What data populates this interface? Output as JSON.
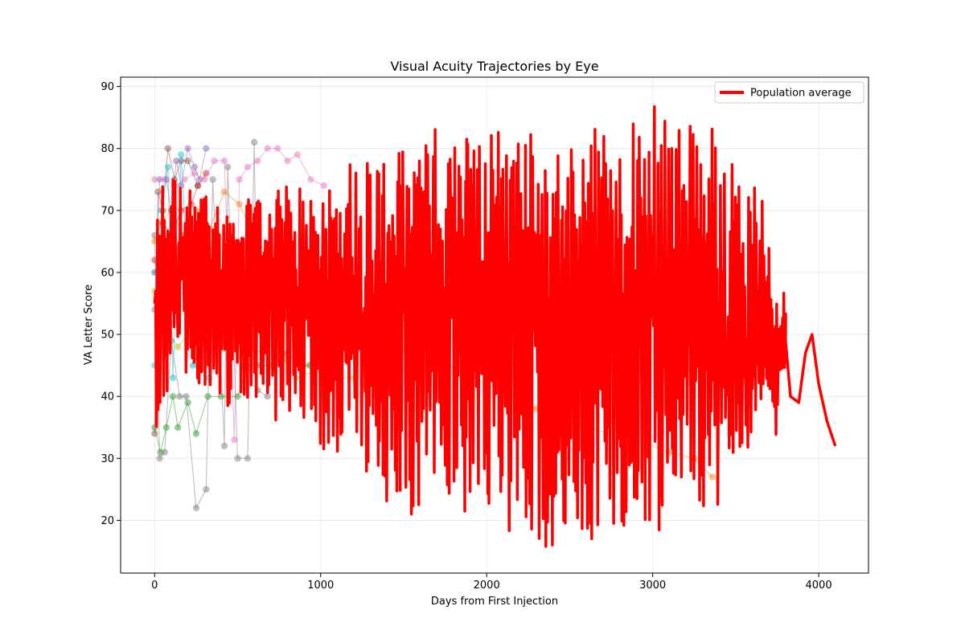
{
  "chart_data": {
    "type": "line",
    "title": "Visual Acuity Trajectories by Eye",
    "xlabel": "Days from First Injection",
    "ylabel": "VA Letter Score",
    "xlim": [
      -205,
      4300
    ],
    "ylim": [
      11.5,
      91.5
    ],
    "xticks": [
      0,
      1000,
      2000,
      3000,
      4000
    ],
    "yticks": [
      20,
      30,
      40,
      50,
      60,
      70,
      80,
      90
    ],
    "xtick_labels": [
      "0",
      "1000",
      "2000",
      "3000",
      "4000"
    ],
    "ytick_labels": [
      "20",
      "30",
      "40",
      "50",
      "60",
      "70",
      "80",
      "90"
    ],
    "grid": true,
    "legend": {
      "position": "upper right",
      "entries": [
        "Population average"
      ]
    },
    "colors": {
      "average": "#ff0000",
      "eyes": [
        "#1f77b4",
        "#ff7f0e",
        "#2ca02c",
        "#d62728",
        "#9467bd",
        "#8c564b",
        "#e377c2",
        "#7f7f7f",
        "#bcbd22",
        "#17becf"
      ]
    },
    "eye_series": [
      {
        "x": [
          0,
          30,
          60,
          90,
          120,
          180,
          240,
          300,
          360
        ],
        "y": [
          60,
          62,
          65,
          63,
          61,
          64,
          66,
          62,
          60
        ]
      },
      {
        "x": [
          0,
          40,
          100,
          170,
          250,
          330,
          420,
          510,
          600,
          700,
          900,
          1100,
          1400,
          1700,
          2000,
          2300,
          2600,
          2900,
          3100,
          3250,
          3360
        ],
        "y": [
          65,
          68,
          70,
          66,
          70,
          67,
          73,
          71,
          66,
          62,
          56,
          52,
          48,
          46,
          42,
          38,
          35,
          33,
          31,
          30,
          27
        ]
      },
      {
        "x": [
          0,
          35,
          70,
          110,
          140,
          200,
          250,
          320,
          400,
          500,
          560,
          620,
          700,
          800,
          880,
          930,
          1000
        ],
        "y": [
          35,
          31,
          35,
          40,
          35,
          39,
          34,
          40,
          40,
          40,
          45,
          45,
          45,
          47,
          45,
          45,
          46
        ]
      },
      {
        "x": [
          0,
          20,
          50,
          100,
          160,
          220,
          260,
          310
        ],
        "y": [
          62,
          60,
          68,
          66,
          70,
          71,
          74,
          76
        ]
      },
      {
        "x": [
          0,
          30,
          70,
          100,
          130,
          160,
          200,
          240,
          270,
          310
        ],
        "y": [
          54,
          75,
          75,
          70,
          78,
          74,
          80,
          77,
          75,
          80
        ]
      },
      {
        "x": [
          0,
          20,
          50,
          80,
          120,
          160,
          200,
          260
        ],
        "y": [
          34,
          73,
          70,
          80,
          75,
          78,
          78,
          74
        ]
      },
      {
        "x": [
          0,
          60,
          120,
          180,
          240,
          300,
          360,
          420,
          480,
          510,
          560,
          620,
          680,
          740,
          800,
          860,
          940,
          1020
        ],
        "y": [
          75,
          75,
          74,
          75,
          76,
          75,
          78,
          78,
          33,
          75,
          77,
          78,
          80,
          80,
          78,
          79,
          75,
          74
        ]
      },
      {
        "x": [
          0,
          30,
          60,
          100,
          150,
          190,
          250,
          310,
          350,
          420,
          440,
          500,
          560,
          600,
          620,
          680
        ],
        "y": [
          66,
          30,
          31,
          49,
          40,
          40,
          22,
          25,
          75,
          32,
          77,
          30,
          30,
          81,
          41,
          40
        ]
      },
      {
        "x": [
          0,
          40,
          90,
          140,
          200,
          260,
          320,
          400,
          500,
          600,
          700,
          780,
          850,
          960,
          1100,
          1200
        ],
        "y": [
          57,
          52,
          50,
          48,
          50,
          45,
          45,
          49,
          48,
          48,
          45,
          46,
          43,
          44,
          43,
          43
        ]
      },
      {
        "x": [
          0,
          40,
          80,
          110,
          160,
          230,
          300,
          330
        ],
        "y": [
          45,
          70,
          77,
          43,
          79,
          45,
          49,
          43
        ]
      }
    ],
    "average_series": {
      "name": "Population average",
      "x": [
        0,
        10,
        20,
        30,
        40,
        55,
        75,
        100,
        130,
        165,
        205,
        250,
        300,
        360,
        430,
        500,
        580,
        670,
        760,
        860,
        960,
        1060,
        1160,
        1260,
        1360,
        1460,
        1560,
        1660,
        1760,
        1860,
        1960,
        2060,
        2160,
        2260,
        2360,
        2460,
        2560,
        2660,
        2760,
        2860,
        2960,
        3060,
        3160,
        3260,
        3360,
        3440,
        3520,
        3580,
        3640,
        3700,
        3760,
        3800,
        3830,
        3880,
        3920,
        3960,
        4000,
        4050,
        4100
      ],
      "y": [
        55,
        45,
        62,
        38,
        66,
        58,
        50,
        63,
        56,
        61,
        58,
        60,
        57,
        59,
        56,
        60,
        57,
        58,
        60,
        55,
        58,
        57,
        61,
        52,
        56,
        58,
        51,
        57,
        55,
        59,
        50,
        56,
        53,
        58,
        49,
        52,
        47,
        56,
        53,
        50,
        57,
        47,
        55,
        49,
        52,
        48,
        56,
        45,
        54,
        50,
        44,
        49,
        40,
        39,
        47,
        50,
        42,
        36,
        32
      ],
      "high": [
        68,
        66,
        75,
        65,
        76,
        76,
        79,
        76,
        77,
        73,
        74,
        72,
        74,
        73,
        70,
        71,
        72,
        73,
        74,
        74,
        72,
        75,
        78,
        80,
        79,
        79,
        82,
        84,
        83,
        83,
        83,
        85,
        82,
        83,
        82,
        80,
        82,
        84,
        82,
        84,
        88,
        87,
        84,
        84,
        84,
        84,
        75,
        75,
        79,
        65,
        57,
        59,
        47,
        40,
        47,
        50,
        42,
        36,
        32
      ],
      "low": [
        33,
        35,
        36,
        32,
        35,
        38,
        40,
        39,
        43,
        42,
        42,
        41,
        42,
        40,
        38,
        40,
        39,
        40,
        34,
        36,
        32,
        30,
        31,
        28,
        25,
        20,
        20,
        22,
        22,
        20,
        17,
        18,
        17,
        16,
        15,
        16,
        15,
        15,
        16,
        17,
        18,
        17,
        24,
        25,
        17,
        25,
        27,
        30,
        38,
        41,
        30,
        45,
        40,
        39,
        47,
        50,
        42,
        36,
        32
      ]
    }
  }
}
